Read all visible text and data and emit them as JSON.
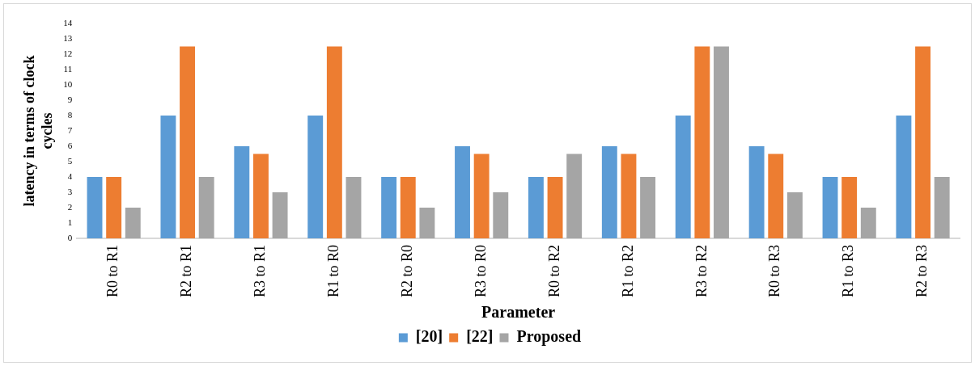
{
  "chart_data": {
    "type": "bar",
    "xlabel": "Parameter",
    "ylabel": "latency in terms of clock cycles",
    "categories": [
      "R0 to R1",
      "R2 to R1",
      "R3 to R1",
      "R1 to R0",
      "R2 to R0",
      "R3 to R0",
      "R0 to R2",
      "R1 to R2",
      "R3 to R2",
      "R0 to R3",
      "R1 to R3",
      "R2 to R3"
    ],
    "series": [
      {
        "name": "[20]",
        "color": "#5b9bd5",
        "values": [
          4,
          8,
          6,
          8,
          4,
          6,
          4,
          6,
          8,
          6,
          4,
          8
        ]
      },
      {
        "name": "[22]",
        "color": "#ed7d31",
        "values": [
          4,
          12.5,
          5.5,
          12.5,
          4,
          5.5,
          4,
          5.5,
          12.5,
          5.5,
          4,
          12.5
        ]
      },
      {
        "name": "Proposed",
        "color": "#a5a5a5",
        "values": [
          2,
          4,
          3,
          4,
          2,
          3,
          5.5,
          4,
          12.5,
          3,
          2,
          4
        ]
      }
    ],
    "ylim": [
      0,
      14
    ],
    "yticks": [
      0,
      1,
      2,
      3,
      4,
      5,
      6,
      7,
      8,
      9,
      10,
      11,
      12,
      13,
      14
    ],
    "grid": false,
    "legend": "bottom"
  }
}
